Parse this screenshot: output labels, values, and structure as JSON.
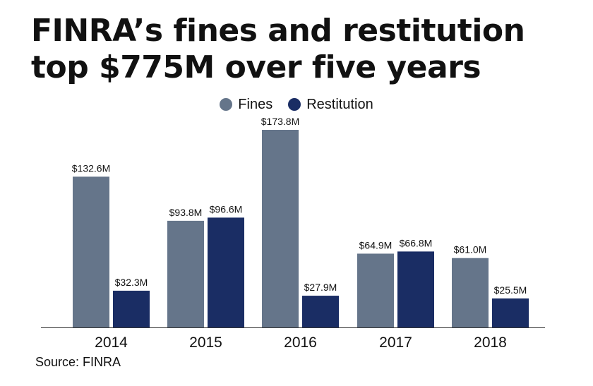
{
  "title_line1": "FINRA’s fines and restitution",
  "title_line2": "top $775M over five years",
  "source": "Source: FINRA",
  "colors": {
    "fines": "#65758a",
    "restitution": "#1a2d64",
    "axis": "#333333",
    "text": "#111111"
  },
  "chart_data": {
    "type": "bar",
    "categories": [
      "2014",
      "2015",
      "2016",
      "2017",
      "2018"
    ],
    "series": [
      {
        "name": "Fines",
        "values": [
          132.6,
          93.8,
          173.8,
          64.9,
          61.0
        ],
        "labels": [
          "$132.6M",
          "$93.8M",
          "$173.8M",
          "$64.9M",
          "$61.0M"
        ]
      },
      {
        "name": "Restitution",
        "values": [
          32.3,
          96.6,
          27.9,
          66.8,
          25.5
        ],
        "labels": [
          "$32.3M",
          "$96.6M",
          "$27.9M",
          "$66.8M",
          "$25.5M"
        ]
      }
    ],
    "ylim": [
      0,
      173.8
    ],
    "grid": false,
    "legend_position": "top-center"
  }
}
